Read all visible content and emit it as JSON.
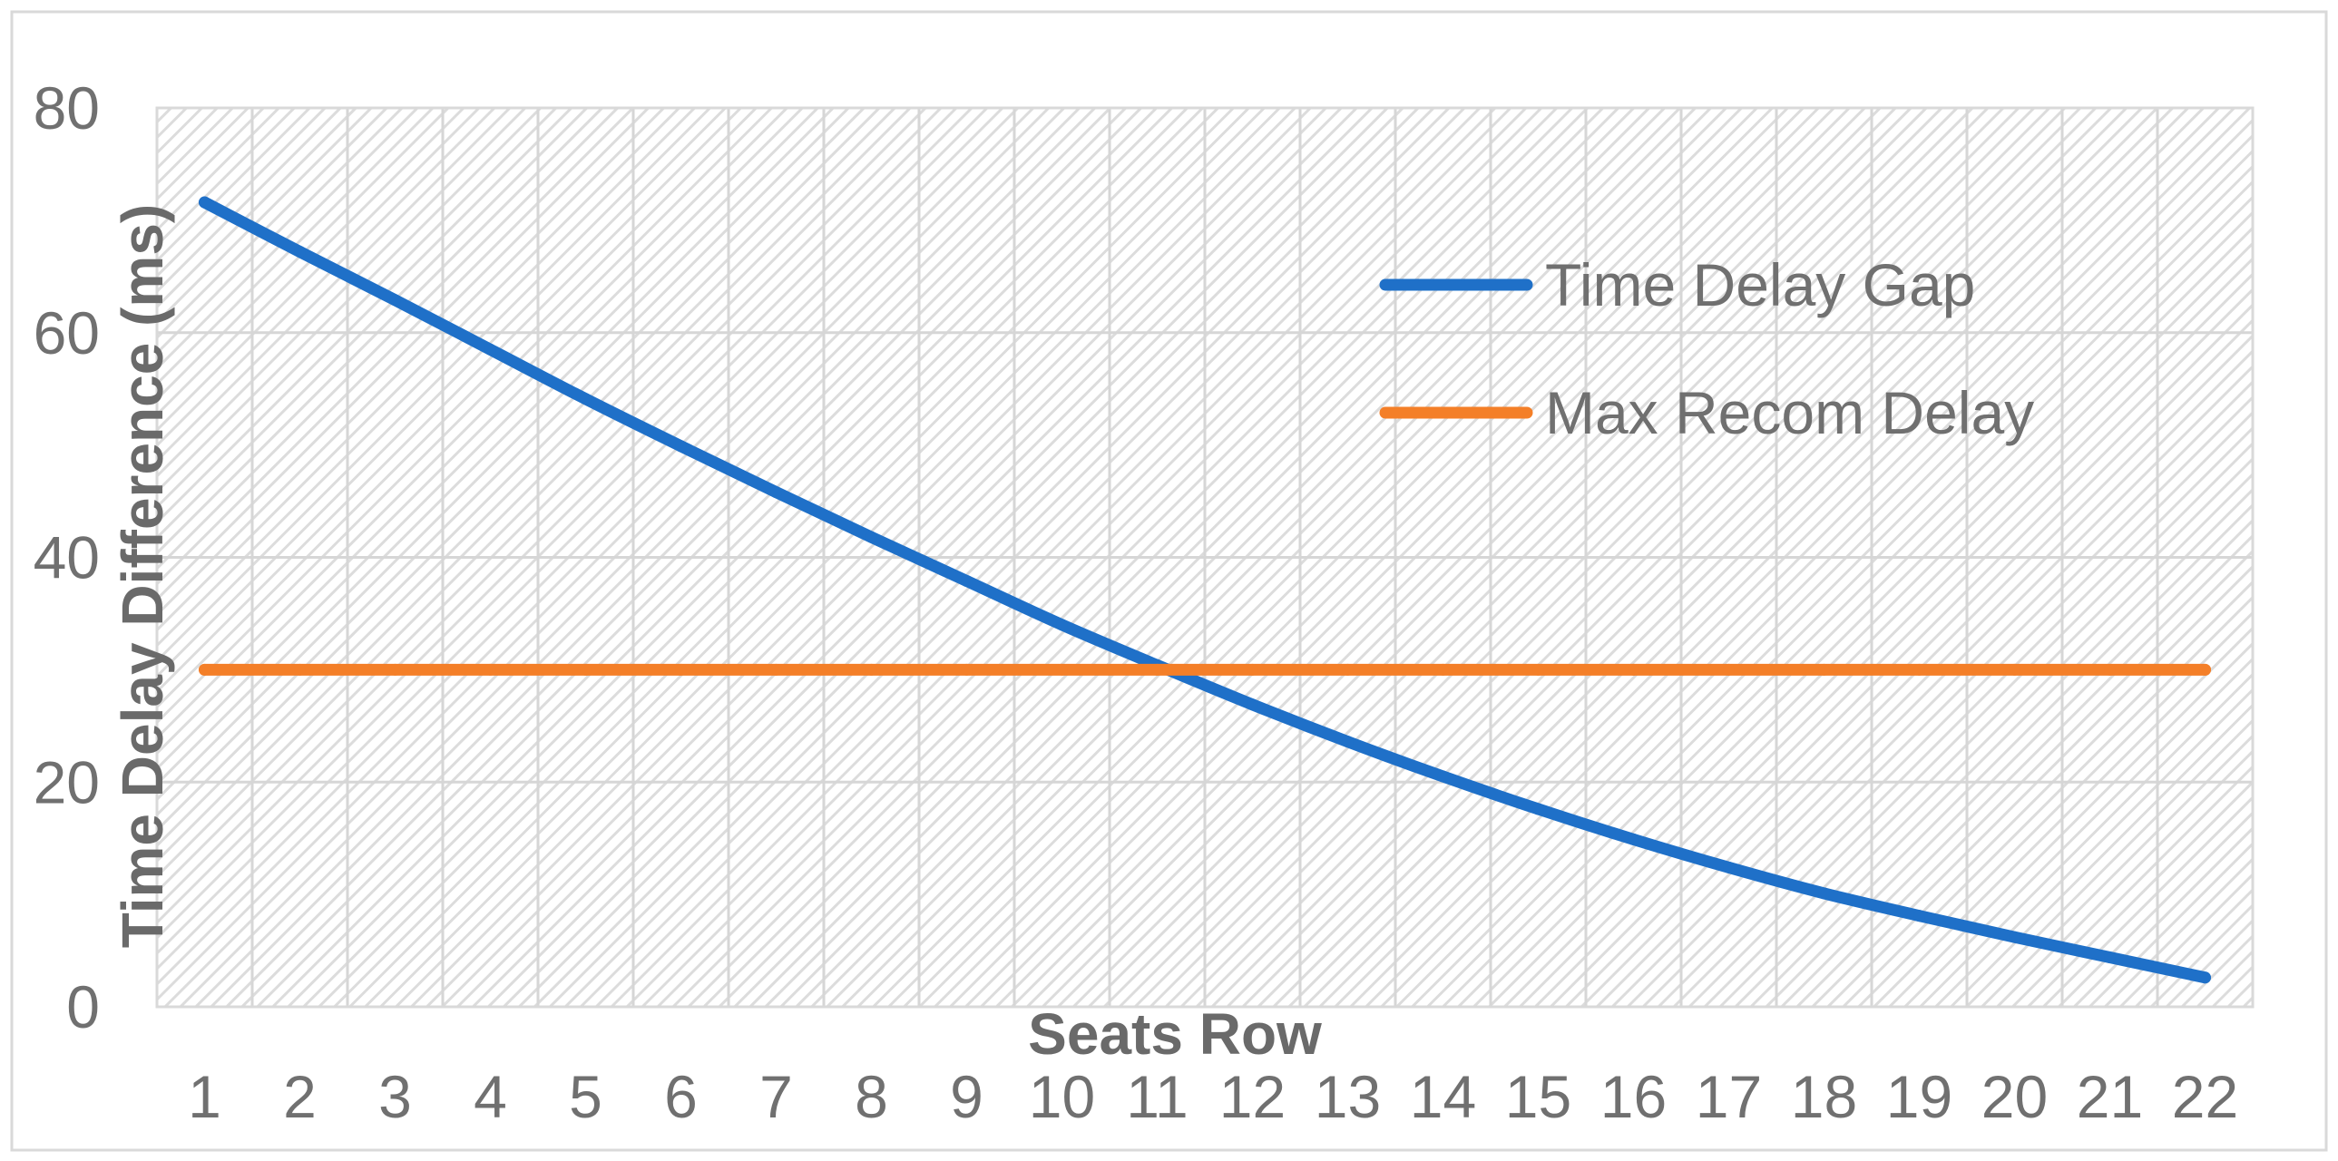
{
  "chart_data": {
    "type": "line",
    "xlabel": "Seats Row",
    "ylabel": "Time Delay Difference (ms)",
    "categories": [
      "1",
      "2",
      "3",
      "4",
      "5",
      "6",
      "7",
      "8",
      "9",
      "10",
      "11",
      "12",
      "13",
      "14",
      "15",
      "16",
      "17",
      "18",
      "19",
      "20",
      "21",
      "22"
    ],
    "ylim": [
      0,
      80
    ],
    "yticks": [
      0,
      20,
      40,
      60,
      80
    ],
    "grid": true,
    "legend_position": "top-right",
    "series": [
      {
        "name": "Time Delay Gap",
        "color": "#1f70c8",
        "values": [
          71.6,
          67.2,
          62.9,
          58.5,
          54.1,
          49.9,
          45.8,
          41.8,
          37.9,
          34.0,
          30.4,
          26.9,
          23.6,
          20.5,
          17.6,
          14.9,
          12.4,
          10.1,
          8.1,
          6.2,
          4.4,
          2.6
        ]
      },
      {
        "name": "Max Recom Delay",
        "color": "#f47f28",
        "values": [
          30,
          30,
          30,
          30,
          30,
          30,
          30,
          30,
          30,
          30,
          30,
          30,
          30,
          30,
          30,
          30,
          30,
          30,
          30,
          30,
          30,
          30
        ]
      }
    ]
  }
}
